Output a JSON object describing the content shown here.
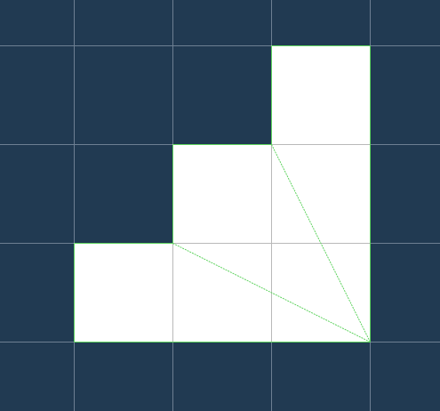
{
  "colors": {
    "background": "#213a52",
    "grid_line": "#6d7f92",
    "filled_cell": "#ffffff",
    "filled_cell_line": "#b9b9b9",
    "outline": "#5fd35f"
  },
  "grid": {
    "columns": 5,
    "rows": 5
  },
  "filled_cells": [
    {
      "col": 3,
      "row": 1
    },
    {
      "col": 2,
      "row": 2
    },
    {
      "col": 3,
      "row": 2
    },
    {
      "col": 1,
      "row": 3
    },
    {
      "col": 2,
      "row": 3
    },
    {
      "col": 3,
      "row": 3
    }
  ],
  "diagonals": [
    {
      "from": {
        "col": 3,
        "row": 2
      },
      "to": {
        "col": 4,
        "row": 4
      }
    },
    {
      "from": {
        "col": 2,
        "row": 3
      },
      "to": {
        "col": 4,
        "row": 4
      }
    }
  ]
}
